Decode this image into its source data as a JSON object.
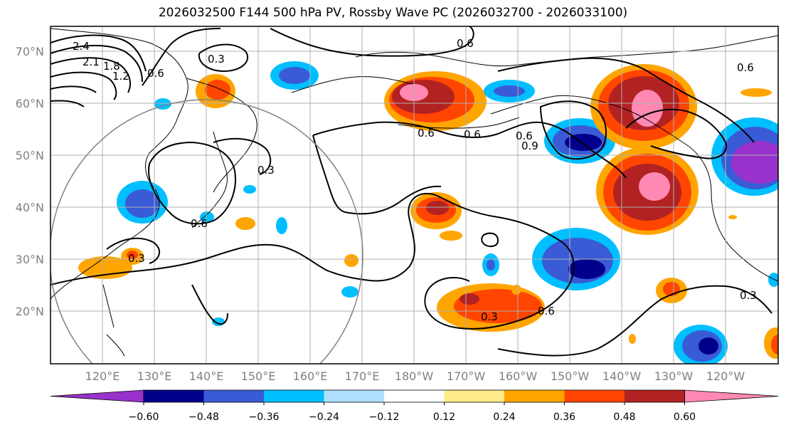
{
  "title": "2026032500 F144 500 hPa PV, Rossby Wave PC (2026032700 - 2026033100)",
  "latitude_labels": [
    "70°N",
    "60°N",
    "50°N",
    "40°N",
    "30°N",
    "20°N"
  ],
  "longitude_labels": [
    "120°E",
    "130°E",
    "140°E",
    "150°E",
    "160°E",
    "170°E",
    "180°W",
    "170°W",
    "160°W",
    "150°W",
    "140°W",
    "130°W",
    "120°W"
  ],
  "colorbar": {
    "ticks": [
      "−0.60",
      "−0.48",
      "−0.36",
      "−0.24",
      "−0.12",
      "0.12",
      "0.24",
      "0.36",
      "0.48",
      "0.60"
    ],
    "colors": [
      "#9932cc",
      "#00008b",
      "#3a5bd6",
      "#00bfff",
      "#b0e0ff",
      "#ffffff",
      "#ffeb8a",
      "#ffa500",
      "#ff4500",
      "#b22222",
      "#ff89b3"
    ]
  },
  "contour_labels": [
    "2.4",
    "2.1",
    "1.8",
    "1.2",
    "0.6",
    "0.3",
    "0.6",
    "0.3",
    "0.6",
    "0.3",
    "0.6",
    "0.6",
    "0.6",
    "0.9",
    "0.6",
    "0.6",
    "0.3",
    "0.3"
  ]
}
